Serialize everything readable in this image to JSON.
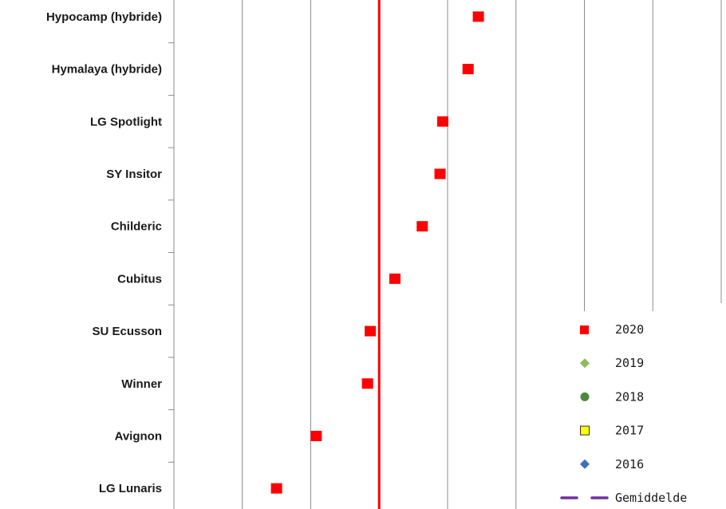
{
  "chart_data": {
    "type": "scatter",
    "orientation": "horizontal",
    "categories": [
      "Hypocamp (hybride)",
      "Hymalaya (hybride)",
      "LG Spotlight",
      "SY Insitor",
      "Childeric",
      "Cubitus",
      "SU Ecusson",
      "Winner",
      "Avignon",
      "LG Lunaris"
    ],
    "series": [
      {
        "name": "2020",
        "marker": "square",
        "color": "#ff0000",
        "values": [
          4.45,
          4.3,
          3.93,
          3.89,
          3.63,
          3.23,
          2.87,
          2.83,
          2.08,
          1.5
        ]
      },
      {
        "name": "2019",
        "marker": "diamond",
        "color": "#8fbc5a",
        "values": []
      },
      {
        "name": "2018",
        "marker": "circle",
        "color": "#4a8a3c",
        "values": []
      },
      {
        "name": "2017",
        "marker": "square-outline",
        "color": "#ffff00",
        "values": []
      },
      {
        "name": "2016",
        "marker": "diamond",
        "color": "#3f6fbf",
        "values": []
      }
    ],
    "reference_line": {
      "name": "Gemiddelde",
      "value": 3.0,
      "color": "#ff0000",
      "legend_color": "#7030a0"
    },
    "xlim": [
      0,
      8
    ],
    "grid": true,
    "legend_position": "bottom-right",
    "title": "",
    "xlabel": "",
    "ylabel": ""
  }
}
